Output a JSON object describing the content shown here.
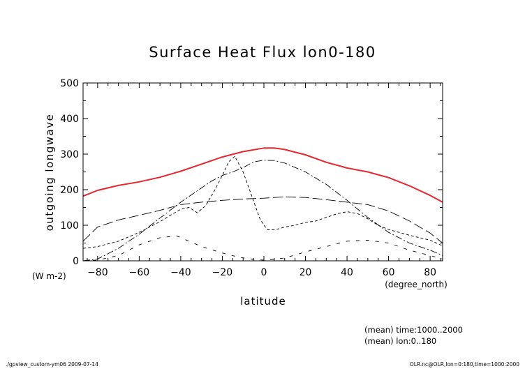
{
  "chart_data": {
    "type": "line",
    "title": "Surface Heat Flux lon0-180",
    "xlabel": "latitude",
    "ylabel": "outgoing longwave",
    "yunits": "(W m-2)",
    "xunits": "(degree_north)",
    "xlim": [
      -87,
      86
    ],
    "ylim": [
      0,
      500
    ],
    "xticks": [
      -80,
      -60,
      -40,
      -20,
      0,
      20,
      40,
      60,
      80
    ],
    "yticks": [
      0,
      100,
      200,
      300,
      400,
      500
    ],
    "grid": false,
    "annotations": {
      "mean_time": "(mean) time:1000..2000",
      "mean_lon": "(mean) lon:0..180",
      "footer_left": "./gpview_custom-ym06  2009-07-14",
      "footer_right": "OLR.nc@OLR,lon=0:180,time=1000:2000"
    },
    "series": [
      {
        "style": "solid",
        "color": "#e8262d",
        "x": [
          -87,
          -80,
          -70,
          -60,
          -50,
          -40,
          -30,
          -20,
          -10,
          0,
          5,
          10,
          20,
          30,
          40,
          50,
          60,
          70,
          80,
          86
        ],
        "y": [
          182,
          198,
          212,
          222,
          235,
          252,
          272,
          292,
          307,
          317,
          317,
          313,
          298,
          277,
          261,
          250,
          234,
          211,
          184,
          165
        ]
      },
      {
        "style": "longdash",
        "color": "#000000",
        "x": [
          -87,
          -80,
          -70,
          -60,
          -50,
          -40,
          -30,
          -20,
          -10,
          0,
          10,
          20,
          30,
          40,
          50,
          60,
          70,
          80,
          86
        ],
        "y": [
          55,
          95,
          115,
          128,
          142,
          158,
          165,
          170,
          174,
          176,
          180,
          178,
          172,
          165,
          158,
          140,
          112,
          78,
          50
        ]
      },
      {
        "style": "dashdot",
        "color": "#000000",
        "x": [
          -87,
          -80,
          -70,
          -60,
          -50,
          -40,
          -30,
          -25,
          -20,
          -15,
          -10,
          -5,
          0,
          5,
          10,
          20,
          30,
          40,
          50,
          60,
          70,
          80,
          86
        ],
        "y": [
          0,
          5,
          35,
          75,
          120,
          165,
          205,
          225,
          240,
          250,
          262,
          278,
          283,
          282,
          275,
          250,
          215,
          170,
          122,
          80,
          50,
          30,
          15
        ]
      },
      {
        "style": "dashed",
        "color": "#000000",
        "x": [
          -87,
          -80,
          -70,
          -60,
          -50,
          -45,
          -40,
          -36,
          -32,
          -28,
          -24,
          -20,
          -17,
          -14,
          -10,
          -6,
          -2,
          0,
          2,
          6,
          10,
          15,
          20,
          25,
          30,
          35,
          40,
          45,
          50,
          55,
          60,
          70,
          80,
          86
        ],
        "y": [
          35,
          40,
          55,
          80,
          110,
          128,
          145,
          150,
          135,
          155,
          195,
          240,
          278,
          294,
          250,
          185,
          120,
          100,
          87,
          88,
          95,
          100,
          108,
          112,
          122,
          132,
          138,
          133,
          118,
          100,
          88,
          72,
          58,
          42
        ]
      },
      {
        "style": "dotted-sparse",
        "color": "#000000",
        "x": [
          -87,
          -80,
          -70,
          -60,
          -50,
          -42,
          -38,
          -30,
          -20,
          -12,
          -5,
          0,
          5,
          10,
          20,
          30,
          40,
          50,
          60,
          70,
          80,
          86
        ],
        "y": [
          0,
          2,
          15,
          45,
          65,
          70,
          60,
          40,
          22,
          10,
          4,
          2,
          4,
          8,
          25,
          40,
          55,
          58,
          50,
          30,
          15,
          5
        ]
      }
    ]
  }
}
